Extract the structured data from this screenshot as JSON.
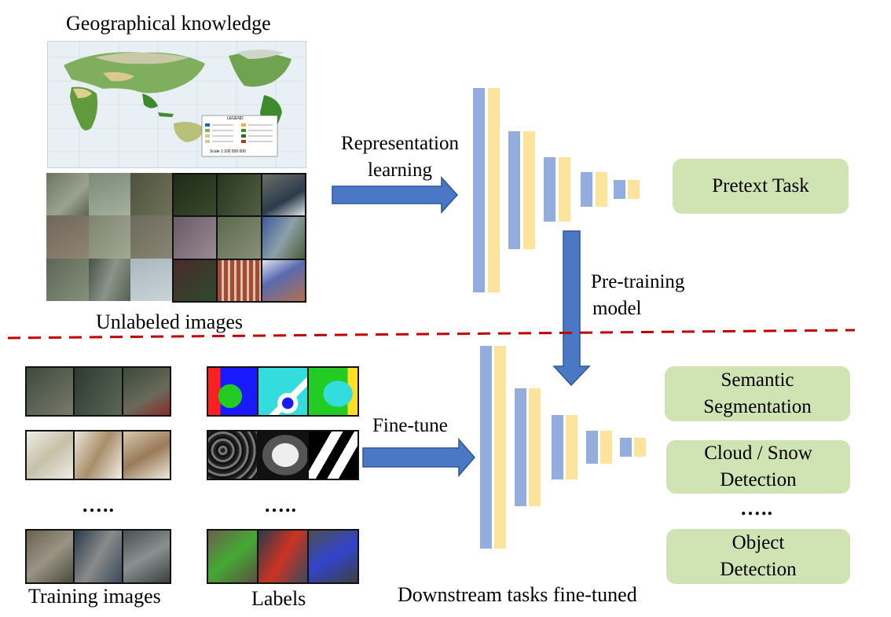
{
  "labels": {
    "geo_knowledge": "Geographical knowledge",
    "unlabeled_images": "Unlabeled images",
    "representation_learning_1": "Representation",
    "representation_learning_2": "learning",
    "pretraining_model_1": "Pre-training",
    "pretraining_model_2": "model",
    "fine_tune": "Fine-tune",
    "training_images": "Training images",
    "labels": "Labels",
    "downstream": "Downstream tasks fine-tuned",
    "dots": "….."
  },
  "tasks": {
    "pretext": "Pretext Task",
    "semantic_1": "Semantic",
    "semantic_2": "Segmentation",
    "cloud_1": "Cloud / Snow",
    "cloud_2": "Detection",
    "object_1": "Object",
    "object_2": "Detection"
  },
  "map": {
    "legend_title": "LEGEND",
    "scale": "Scale 1:100 000 000"
  },
  "colors": {
    "arrow": "#4a78c4",
    "arrow_stroke": "#2f5597",
    "encoder_blue": "#93aede",
    "encoder_yellow": "#fde49c",
    "task_box": "#cfe3b3",
    "divider": "#c00000"
  }
}
